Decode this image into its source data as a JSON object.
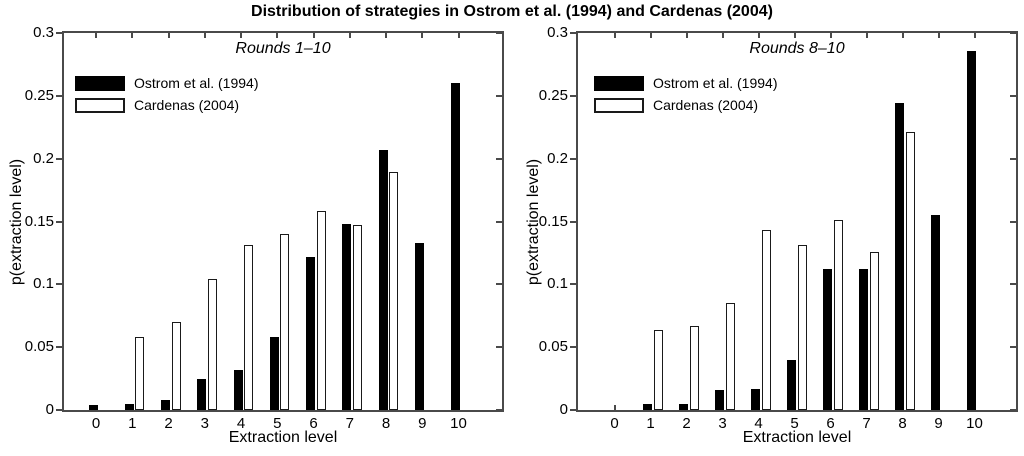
{
  "title": "Distribution of strategies in Ostrom et al. (1994) and Cardenas (2004)",
  "figure": {
    "background": "#ffffff",
    "axis_color": "#4a4a4a",
    "bar_black": "#000000",
    "bar_white": "#ffffff"
  },
  "chart_data": [
    {
      "type": "bar",
      "panel": "left",
      "subtitle": "Rounds 1–10",
      "xlabel": "Extraction level",
      "ylabel": "p(extraction level)",
      "categories": [
        "0",
        "1",
        "2",
        "3",
        "4",
        "5",
        "6",
        "7",
        "8",
        "9",
        "10"
      ],
      "ylim": [
        0,
        0.3
      ],
      "ytick_labels": [
        "0",
        "0.05",
        "0.1",
        "0.15",
        "0.2",
        "0.25",
        "0.3"
      ],
      "grid": false,
      "legend_position": "top-left",
      "series": [
        {
          "name": "Ostrom et al. (1994)",
          "fill": "#000000",
          "values": [
            0.004,
            0.005,
            0.008,
            0.025,
            0.032,
            0.058,
            0.122,
            0.148,
            0.207,
            0.133,
            0.26
          ]
        },
        {
          "name": "Cardenas (2004)",
          "fill": "#ffffff",
          "values": [
            0,
            0.058,
            0.07,
            0.104,
            0.131,
            0.14,
            0.158,
            0.147,
            0.189,
            0,
            0
          ]
        }
      ]
    },
    {
      "type": "bar",
      "panel": "right",
      "subtitle": "Rounds 8–10",
      "xlabel": "Extraction level",
      "ylabel": "p(extraction level)",
      "categories": [
        "0",
        "1",
        "2",
        "3",
        "4",
        "5",
        "6",
        "7",
        "8",
        "9",
        "10"
      ],
      "ylim": [
        0,
        0.3
      ],
      "ytick_labels": [
        "0",
        "0.05",
        "0.1",
        "0.15",
        "0.2",
        "0.25",
        "0.3"
      ],
      "grid": false,
      "legend_position": "top-left",
      "series": [
        {
          "name": "Ostrom et al. (1994)",
          "fill": "#000000",
          "values": [
            0,
            0.005,
            0.005,
            0.016,
            0.017,
            0.04,
            0.112,
            0.112,
            0.244,
            0.155,
            0.286
          ]
        },
        {
          "name": "Cardenas (2004)",
          "fill": "#ffffff",
          "values": [
            0,
            0.064,
            0.067,
            0.085,
            0.143,
            0.131,
            0.151,
            0.126,
            0.221,
            0,
            0
          ]
        }
      ]
    }
  ]
}
